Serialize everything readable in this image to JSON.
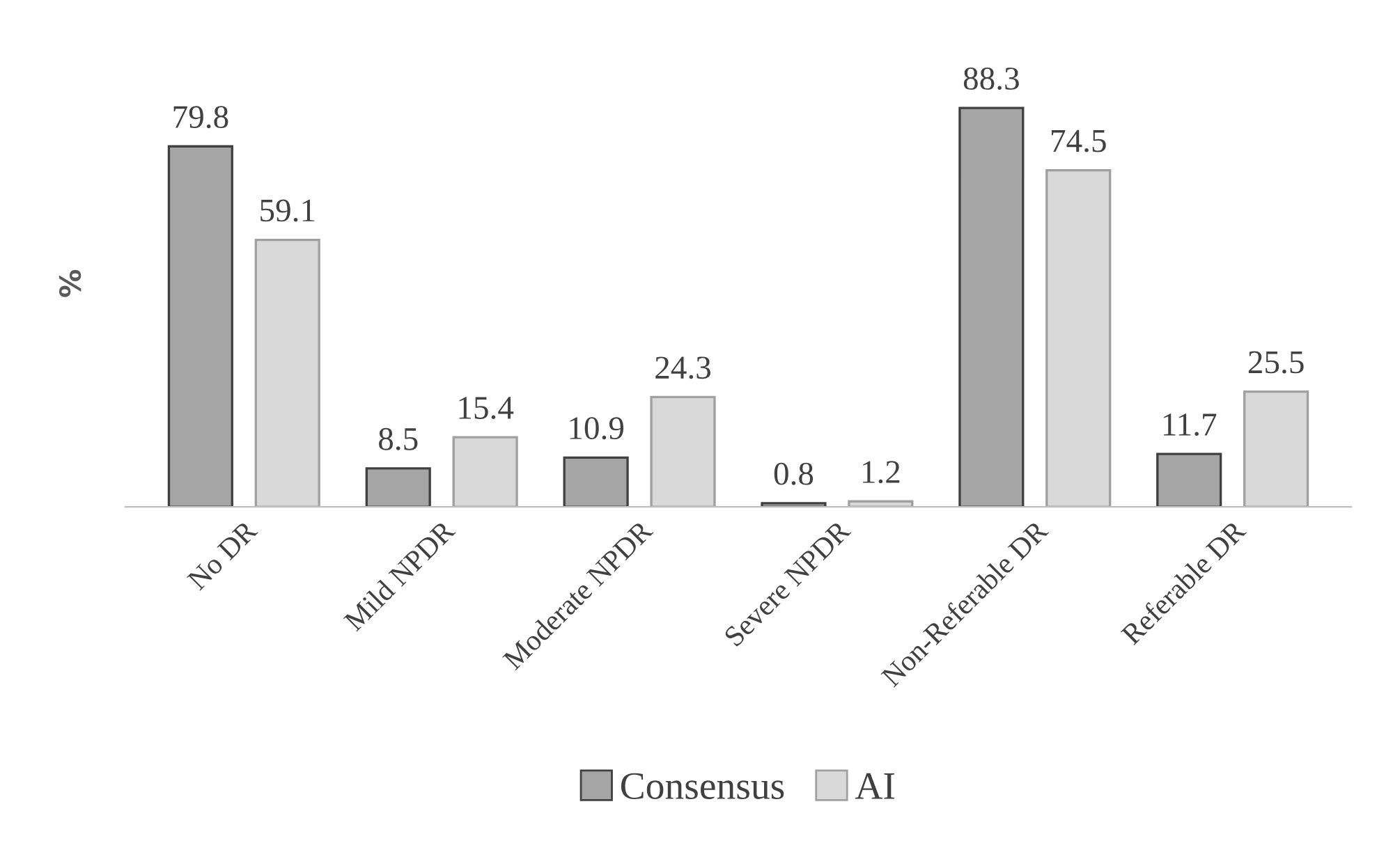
{
  "chart_data": {
    "type": "bar",
    "ylabel": "%",
    "categories": [
      "No DR",
      "Mild NPDR",
      "Moderate NPDR",
      "Severe NPDR",
      "Non-Referable DR",
      "Referable DR"
    ],
    "series": [
      {
        "name": "Consensus",
        "color": "#a5a5a5",
        "values": [
          79.8,
          8.5,
          10.9,
          0.8,
          88.3,
          11.7
        ]
      },
      {
        "name": "AI",
        "color": "#d9d9d9",
        "values": [
          59.1,
          15.4,
          24.3,
          1.2,
          74.5,
          25.5
        ]
      }
    ],
    "data_labels": true,
    "legend": "bottom",
    "grid": false
  }
}
